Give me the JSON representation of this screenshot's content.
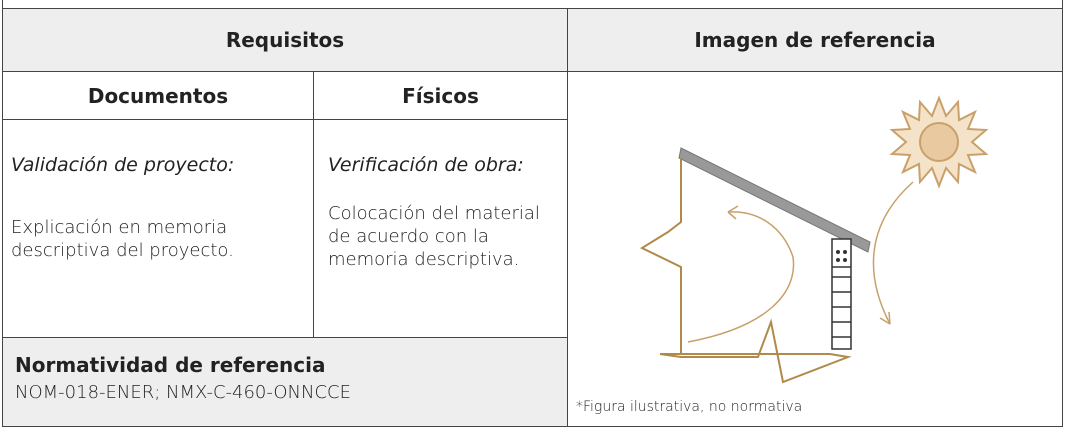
{
  "header": {
    "requisitos": "Requisitos",
    "imagen": "Imagen de referencia"
  },
  "subheader": {
    "documentos": "Documentos",
    "fisicos": "Físicos"
  },
  "documentos": {
    "label": "Validación de proyecto:",
    "text": "Explicación en memoria descriptiva del proyecto."
  },
  "fisicos": {
    "label": "Verificación de obra:",
    "text": "Colocación del material de acuerdo con la memoria descriptiva."
  },
  "normatividad": {
    "title": "Normatividad de referencia",
    "text": "NOM-018-ENER; NMX-C-460-ONNCCE"
  },
  "image": {
    "caption": "*Figura ilustrativa, no normativa"
  }
}
